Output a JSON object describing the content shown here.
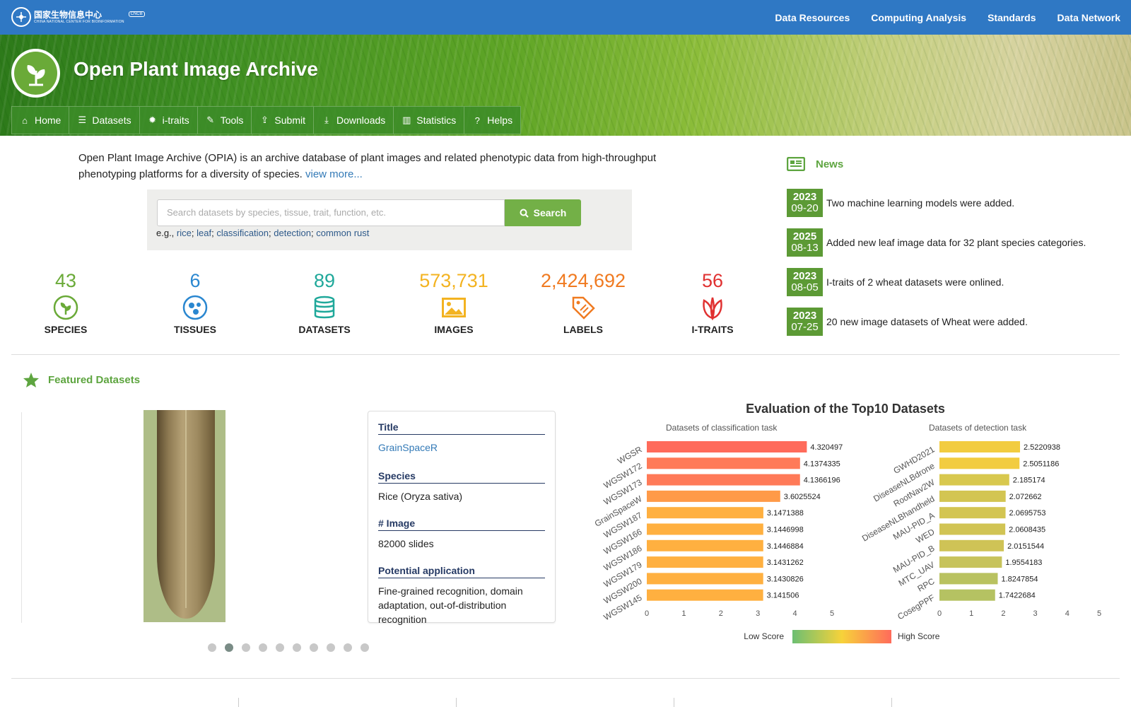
{
  "topbar": {
    "logo_text": "国家生物信息中心",
    "logo_sub": "CHINA NATIONAL CENTER FOR BIOINFORMATION",
    "logo_badge": "CNCB",
    "nav": [
      "Data Resources",
      "Computing Analysis",
      "Standards",
      "Data Network"
    ]
  },
  "banner": {
    "title": "Open Plant Image Archive",
    "menu": [
      {
        "label": "Home",
        "icon": "home-icon"
      },
      {
        "label": "Datasets",
        "icon": "list-icon"
      },
      {
        "label": "i-traits",
        "icon": "gear-icon"
      },
      {
        "label": "Tools",
        "icon": "wrench-icon"
      },
      {
        "label": "Submit",
        "icon": "upload-icon"
      },
      {
        "label": "Downloads",
        "icon": "download-icon"
      },
      {
        "label": "Statistics",
        "icon": "bar-chart-icon"
      },
      {
        "label": "Helps",
        "icon": "question-icon"
      }
    ]
  },
  "intro": {
    "text": "Open Plant Image Archive (OPIA) is an archive database of plant images and related phenotypic data from high-throughput phenotyping platforms for a diversity of species.",
    "more": "view more..."
  },
  "search": {
    "placeholder": "Search datasets by species, tissue, trait, function, etc.",
    "button": "Search",
    "eg_prefix": "e.g.,",
    "examples": [
      "rice",
      "leaf",
      "classification",
      "detection",
      "common rust"
    ]
  },
  "stats": [
    {
      "value": "43",
      "label": "SPECIES",
      "color": "#6aaa38"
    },
    {
      "value": "6",
      "label": "TISSUES",
      "color": "#2a87d0"
    },
    {
      "value": "89",
      "label": "DATASETS",
      "color": "#1fa89a"
    },
    {
      "value": "573,731",
      "label": "IMAGES",
      "color": "#f3b321"
    },
    {
      "value": "2,424,692",
      "label": "LABELS",
      "color": "#f07a20"
    },
    {
      "value": "56",
      "label": "I-TRAITS",
      "color": "#e03131"
    }
  ],
  "news": {
    "title": "News",
    "items": [
      {
        "year": "2023",
        "md": "09-20",
        "text": "Two machine learning models were added."
      },
      {
        "year": "2025",
        "md": "08-13",
        "text": "Added new leaf image data for 32 plant species categories."
      },
      {
        "year": "2023",
        "md": "08-05",
        "text": "I-traits of 2 wheat datasets were onlined."
      },
      {
        "year": "2023",
        "md": "07-25",
        "text": "20 new image datasets of Wheat were added."
      }
    ]
  },
  "featured": {
    "title": "Featured Datasets",
    "card": {
      "title_label": "Title",
      "title_value": "GrainSpaceR",
      "species_label": "Species",
      "species_value": "Rice (Oryza sativa)",
      "image_label": "# Image",
      "image_value": "82000 slides",
      "app_label": "Potential application",
      "app_value": "Fine-grained recognition, domain adaptation, out-of-distribution recognition"
    },
    "dots_count": 10,
    "active_dot": 1
  },
  "chart_data": [
    {
      "type": "bar",
      "title": "Evaluation of the Top10 Datasets",
      "subtitle": "Datasets of classification task",
      "orientation": "horizontal",
      "categories": [
        "WGSR",
        "WGSW172",
        "WGSW173",
        "GrainSpaceW",
        "WGSW187",
        "WGSW166",
        "WGSW186",
        "WGSW179",
        "WGSW200",
        "WGSW145"
      ],
      "values": [
        4.320497,
        4.1374335,
        4.1366196,
        3.6025524,
        3.1471388,
        3.1446998,
        3.1446884,
        3.1431262,
        3.1430826,
        3.141506
      ],
      "labels": [
        "4.320497",
        "4.1374335",
        "4.1366196",
        "3.6025524",
        "3.1471388",
        "3.1446998",
        "3.1446884",
        "3.1431262",
        "3.1430826",
        "3.141506"
      ],
      "xlim": [
        0,
        5
      ],
      "xticks": [
        "0",
        "1",
        "2",
        "3",
        "4",
        "5"
      ]
    },
    {
      "type": "bar",
      "subtitle": "Datasets of detection task",
      "orientation": "horizontal",
      "categories": [
        "GWHD2021",
        "DiseaseNLBdrone",
        "RootNav2W",
        "DiseaseNLBhandheld",
        "MAU-PID_A",
        "WED",
        "MAU-PID_B",
        "MTC_UAV",
        "RPC",
        "CosegPPF"
      ],
      "values": [
        2.5220938,
        2.5051186,
        2.185174,
        2.072662,
        2.0695753,
        2.0608435,
        2.0151544,
        1.9554183,
        1.8247854,
        1.7422684
      ],
      "labels": [
        "2.5220938",
        "2.5051186",
        "2.185174",
        "2.072662",
        "2.0695753",
        "2.0608435",
        "2.0151544",
        "1.9554183",
        "1.8247854",
        "1.7422684"
      ],
      "xlim": [
        0,
        5
      ],
      "xticks": [
        "0",
        "1",
        "2",
        "3",
        "4",
        "5"
      ]
    }
  ],
  "legend": {
    "low": "Low Score",
    "high": "High Score"
  },
  "colors": {
    "classification_bars": [
      "#ff6b5b",
      "#ff7a58",
      "#ff7a58",
      "#ff9a48",
      "#ffb040",
      "#ffb040",
      "#ffb040",
      "#ffb040",
      "#ffb040",
      "#ffb040"
    ],
    "detection_bars": [
      "#f2cc40",
      "#f2cc40",
      "#d8c84e",
      "#d3c552",
      "#d3c552",
      "#d1c454",
      "#cfc356",
      "#c7c35b",
      "#b9c260",
      "#b5c262"
    ]
  }
}
